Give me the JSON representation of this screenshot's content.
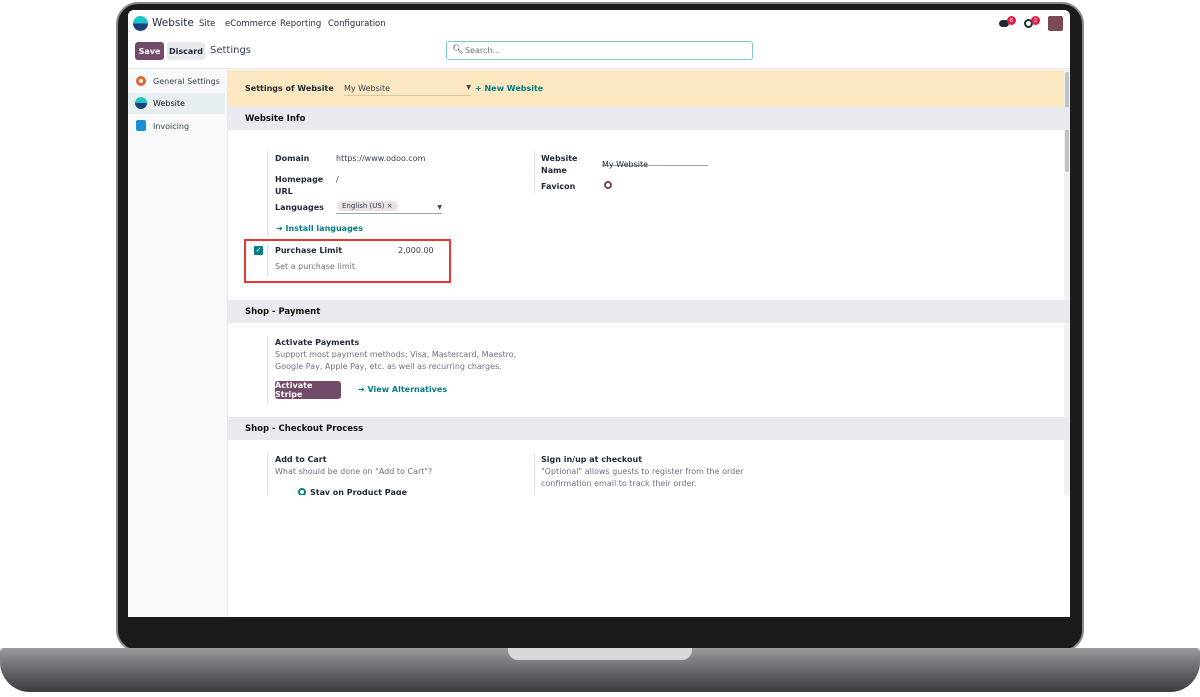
{
  "navbar": {
    "app": "Website",
    "menu": [
      "Site",
      "eCommerce",
      "Reporting",
      "Configuration"
    ],
    "messages_count": "6",
    "activities_count": "2"
  },
  "control": {
    "save": "Save",
    "discard": "Discard",
    "title": "Settings",
    "search_placeholder": "Search..."
  },
  "sidebar": {
    "items": [
      {
        "label": "General Settings",
        "icon": "odoo-settings-icon"
      },
      {
        "label": "Website",
        "icon": "website-icon"
      },
      {
        "label": "Invoicing",
        "icon": "invoicing-icon"
      }
    ],
    "active": "Website"
  },
  "banner": {
    "label": "Settings of Website",
    "value": "My Website",
    "new": "+ New Website"
  },
  "website_info": {
    "title": "Website Info",
    "domain_label": "Domain",
    "domain": "https://www.odoo.com",
    "homepage_label1": "Homepage",
    "homepage_label2": "URL",
    "homepage": "/",
    "languages_label": "Languages",
    "language_tag": "English (US) ×",
    "install": "Install languages",
    "name_label1": "Website",
    "name_label2": "Name",
    "name": "My Website",
    "favicon_label": "Favicon",
    "purchase_limit": "Purchase Limit",
    "purchase_value": "2,000.00",
    "purchase_desc": "Set a purchase limit",
    "purchase_checked": true
  },
  "payment": {
    "title": "Shop - Payment",
    "heading": "Activate Payments",
    "desc1": "Support most payment methods; Visa, Mastercard, Maestro,",
    "desc2": "Google Pay, Apple Pay, etc. as well as recurring charges.",
    "stripe": "Activate Stripe",
    "alternatives": "View Alternatives"
  },
  "checkout": {
    "title": "Shop - Checkout Process",
    "cart_title": "Add to Cart",
    "cart_desc": "What should be done on \"Add to Cart\"?",
    "cart_option": "Stay on Product Page",
    "signin_title": "Sign in/up at checkout",
    "signin_desc1": "\"Optional\" allows guests to register from the order",
    "signin_desc2": "confirmation email to track their order."
  },
  "colors": {
    "primary": "#714b67",
    "link": "#017e84",
    "banner": "#fbe8c0",
    "highlight": "#e53935"
  }
}
